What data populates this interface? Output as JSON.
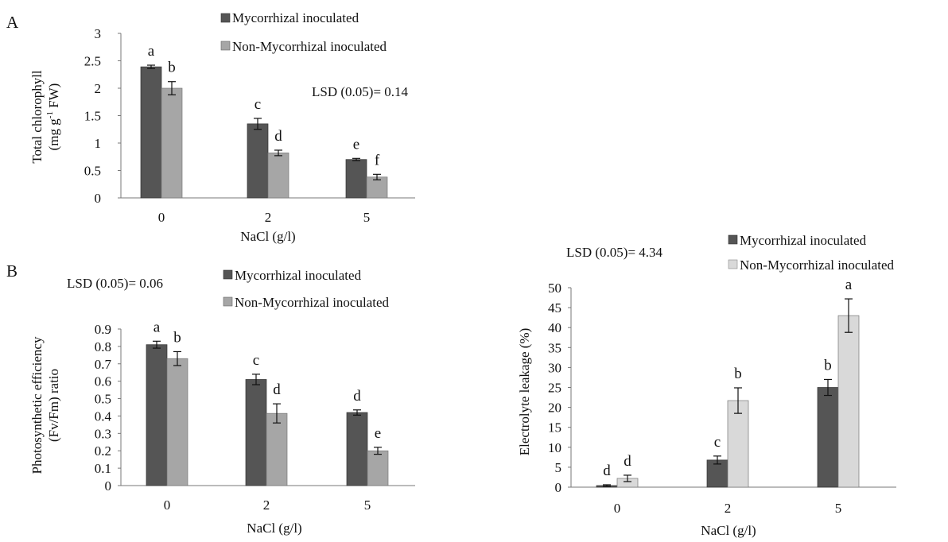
{
  "chart_data": [
    {
      "type": "bar",
      "panel_label": "A",
      "categories": [
        "0",
        "2",
        "5"
      ],
      "series": [
        {
          "name": "Mycorrhizal inoculated",
          "values": [
            2.39,
            1.35,
            0.7
          ],
          "errors": [
            0.03,
            0.1,
            0.02
          ],
          "letters": [
            "a",
            "c",
            "e"
          ],
          "color": "#555555"
        },
        {
          "name": "Non-Mycorrhizal inoculated",
          "values": [
            2.0,
            0.82,
            0.38
          ],
          "errors": [
            0.12,
            0.05,
            0.05
          ],
          "letters": [
            "b",
            "d",
            "f"
          ],
          "color": "#a6a6a6"
        }
      ],
      "ylim": [
        0,
        3
      ],
      "yticks": [
        "0",
        "0.5",
        "1",
        "1.5",
        "2",
        "2.5",
        "3"
      ],
      "ylabel_line1": "Total chlorophyll",
      "ylabel_line2": "(mg g",
      "ylabel_sup": "-1",
      "ylabel_line2_end": " FW)",
      "xlabel": "NaCl  (g/l)",
      "annotation": "LSD (0.05)= 0.14",
      "legend_position": "top-right"
    },
    {
      "type": "bar",
      "panel_label": "B",
      "categories": [
        "0",
        "2",
        "5"
      ],
      "series": [
        {
          "name": "Mycorrhizal inoculated",
          "values": [
            0.81,
            0.61,
            0.42
          ],
          "errors": [
            0.02,
            0.03,
            0.015
          ],
          "letters": [
            "a",
            "c",
            "d"
          ],
          "color": "#555555"
        },
        {
          "name": "Non-Mycorrhizal inoculated",
          "values": [
            0.73,
            0.415,
            0.2
          ],
          "errors": [
            0.04,
            0.055,
            0.02
          ],
          "letters": [
            "b",
            "d",
            "e"
          ],
          "color": "#a6a6a6"
        }
      ],
      "ylim": [
        0,
        0.9
      ],
      "yticks": [
        "0",
        "0.1",
        "0.2",
        "0.3",
        "0.4",
        "0.5",
        "0.6",
        "0.7",
        "0.8",
        "0.9"
      ],
      "ylabel_line1": "Photosynthetic efficiency",
      "ylabel_line2": "(Fv/Fm) ratio",
      "xlabel": "NaCl  (g/l)",
      "annotation": "LSD (0.05)= 0.06",
      "legend_position": "top-right"
    },
    {
      "type": "bar",
      "categories": [
        "0",
        "2",
        "5"
      ],
      "series": [
        {
          "name": "Mycorrhizal inoculated",
          "values": [
            0.4,
            6.8,
            25.0
          ],
          "errors": [
            0.2,
            1.0,
            2.0
          ],
          "letters": [
            "d",
            "c",
            "b"
          ],
          "color": "#555555"
        },
        {
          "name": "Non-Mycorrhizal inoculated",
          "values": [
            2.2,
            21.7,
            43.0
          ],
          "errors": [
            0.8,
            3.2,
            4.2
          ],
          "letters": [
            "d",
            "b",
            "a"
          ],
          "color": "#d9d9d9"
        }
      ],
      "ylim": [
        0,
        50
      ],
      "yticks": [
        "0",
        "5",
        "10",
        "15",
        "20",
        "25",
        "30",
        "35",
        "40",
        "45",
        "50"
      ],
      "ylabel_line1": "Electrolyte leakage (%)",
      "xlabel": "NaCl (g/l)",
      "annotation": "LSD (0.05)= 4.34",
      "legend_position": "top-right"
    }
  ]
}
